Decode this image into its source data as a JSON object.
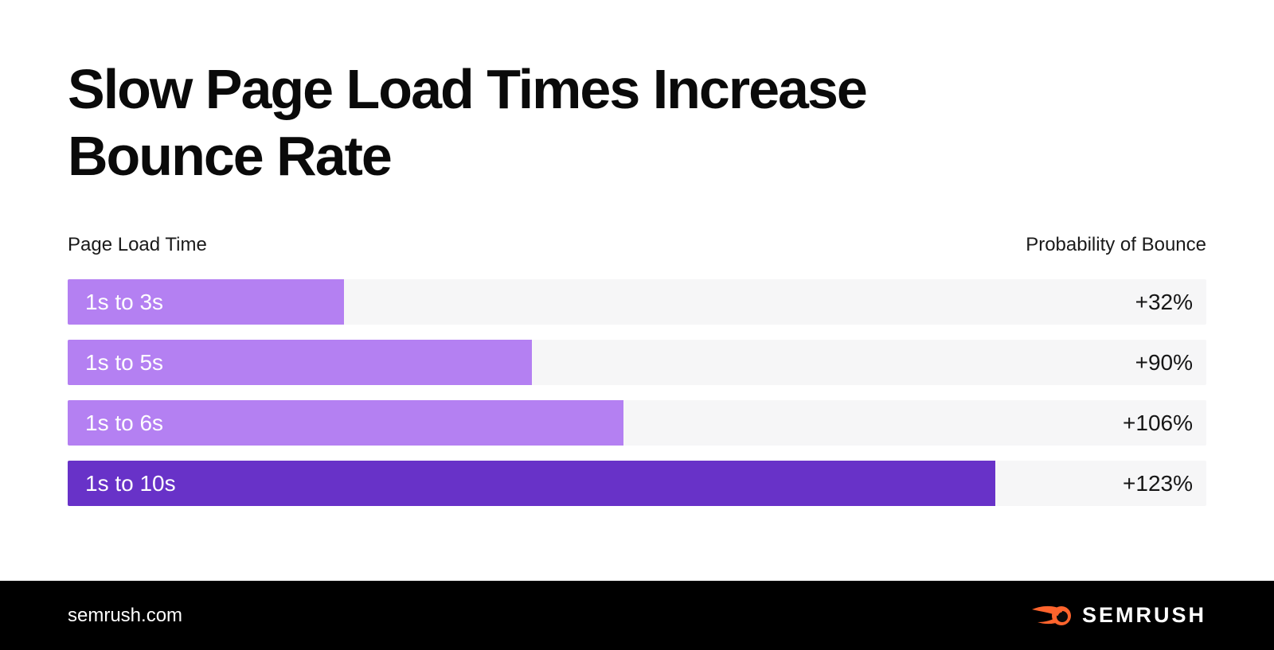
{
  "header": {
    "title_lines": [
      "Slow Page Load Times Increase",
      "Bounce Rate"
    ]
  },
  "chart_data": {
    "type": "bar",
    "orientation": "horizontal",
    "title": "Slow Page Load Times Increase Bounce Rate",
    "left_header": "Page Load Time",
    "right_header": "Probability of Bounce",
    "categories": [
      "1s to 3s",
      "1s to 5s",
      "1s to 6s",
      "1s to 10s"
    ],
    "values": [
      32,
      90,
      106,
      123
    ],
    "value_labels": [
      "+32%",
      "+90%",
      "+106%",
      "+123%"
    ],
    "bar_width_pct_of_track": [
      24.3,
      40.8,
      48.8,
      81.5
    ],
    "bar_colors": [
      "#b480f2",
      "#b480f2",
      "#b480f2",
      "#6832c8"
    ],
    "track_color": "#f6f6f7",
    "label_color": "#ffffff",
    "value_color": "#161616",
    "grid": false,
    "legend": "none"
  },
  "footer": {
    "website": "semrush.com",
    "logo_text": "SEMRUSH",
    "background_color": "#000000",
    "logo_flame_color": "#ff642d",
    "logo_text_color": "#ffffff"
  }
}
